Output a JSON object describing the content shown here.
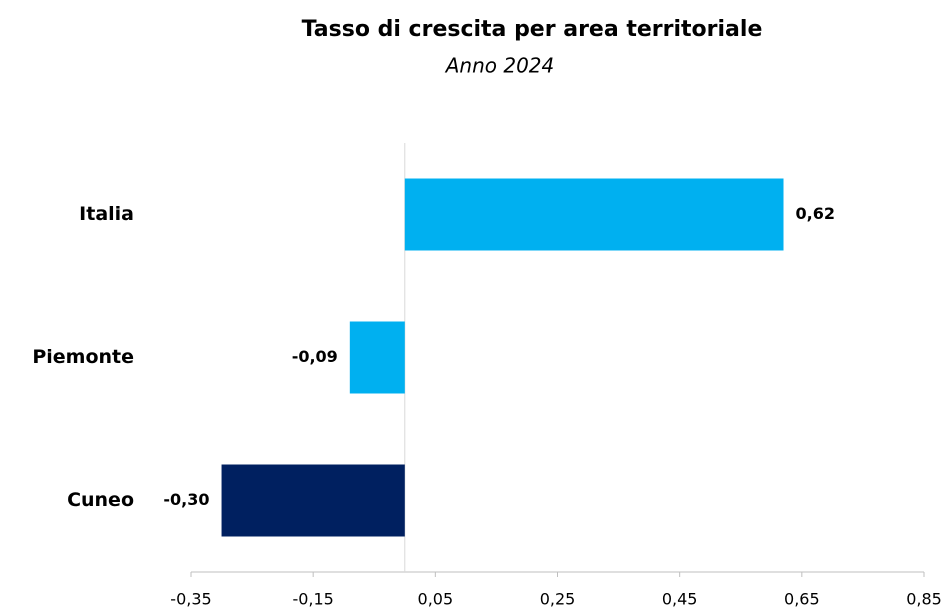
{
  "chart_data": {
    "type": "barh",
    "title": "Tasso di crescita per area territoriale",
    "subtitle": "Anno 2024",
    "categories": [
      "Italia",
      "Piemonte",
      "Cuneo"
    ],
    "values": [
      0.62,
      -0.09,
      -0.3
    ],
    "value_labels": [
      "0,62",
      "-0,09",
      "-0,30"
    ],
    "colors": [
      "#00b0f0",
      "#00b0f0",
      "#002060"
    ],
    "xlim": [
      -0.35,
      0.85
    ],
    "xticks": [
      {
        "value": -0.35,
        "label": "-0,35"
      },
      {
        "value": -0.15,
        "label": "-0,15"
      },
      {
        "value": 0.05,
        "label": "0,05"
      },
      {
        "value": 0.25,
        "label": "0,25"
      },
      {
        "value": 0.45,
        "label": "0,45"
      },
      {
        "value": 0.65,
        "label": "0,65"
      },
      {
        "value": 0.85,
        "label": "0,85"
      }
    ]
  }
}
